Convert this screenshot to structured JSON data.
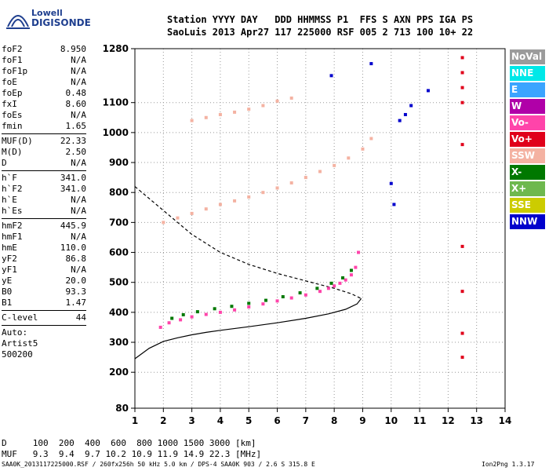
{
  "logo": {
    "line1": "Lowell",
    "line2": "DIGISONDE"
  },
  "header": {
    "line1": "Station YYYY DAY   DDD HHMMSS P1  FFS S AXN PPS IGA PS",
    "line2": "SaoLuis 2013 Apr27 117 225000 RSF 005 2 713 100 10+ 22"
  },
  "params": [
    {
      "name": "foF2",
      "value": "8.950"
    },
    {
      "name": "foF1",
      "value": "N/A"
    },
    {
      "name": "foF1p",
      "value": "N/A"
    },
    {
      "name": "foE",
      "value": "N/A"
    },
    {
      "name": "foEp",
      "value": "0.48"
    },
    {
      "name": "fxI",
      "value": "8.60"
    },
    {
      "name": "foEs",
      "value": "N/A"
    },
    {
      "name": "fmin",
      "value": "1.65"
    },
    {
      "sep": true
    },
    {
      "name": "MUF(D)",
      "value": "22.33"
    },
    {
      "name": "M(D)",
      "value": "2.50"
    },
    {
      "name": "D",
      "value": "N/A"
    },
    {
      "sep": true
    },
    {
      "name": "h`F",
      "value": "341.0"
    },
    {
      "name": "h`F2",
      "value": "341.0"
    },
    {
      "name": "h`E",
      "value": "N/A"
    },
    {
      "name": "h`Es",
      "value": "N/A"
    },
    {
      "sep": true
    },
    {
      "name": "hmF2",
      "value": "445.9"
    },
    {
      "name": "hmF1",
      "value": "N/A"
    },
    {
      "name": "hmE",
      "value": "110.0"
    },
    {
      "name": "yF2",
      "value": "86.8"
    },
    {
      "name": "yF1",
      "value": "N/A"
    },
    {
      "name": "yE",
      "value": "20.0"
    },
    {
      "name": "B0",
      "value": "93.3"
    },
    {
      "name": "B1",
      "value": "1.47"
    },
    {
      "sep": true
    },
    {
      "name": "C-level",
      "value": "44"
    },
    {
      "sep": true
    },
    {
      "name": "Auto:",
      "value": ""
    },
    {
      "name": "Artist5",
      "value": ""
    },
    {
      "name": "500200",
      "value": ""
    }
  ],
  "legend": [
    {
      "label": "NoVal",
      "color": "#9b9b9b"
    },
    {
      "label": "NNE",
      "color": "#00e8e8"
    },
    {
      "label": "E",
      "color": "#3ba4ff"
    },
    {
      "label": "W",
      "color": "#b000a8"
    },
    {
      "label": "Vo-",
      "color": "#ff44aa"
    },
    {
      "label": "Vo+",
      "color": "#e0001a"
    },
    {
      "label": "SSW",
      "color": "#f4b2a2"
    },
    {
      "label": "X-",
      "color": "#007800"
    },
    {
      "label": "X+",
      "color": "#6eb84e"
    },
    {
      "label": "SSE",
      "color": "#cccc00"
    },
    {
      "label": "NNW",
      "color": "#0000cc"
    }
  ],
  "muf_table": {
    "line1": "D     100  200  400  600  800 1000 1500 3000 [km]",
    "line2": "MUF   9.3  9.4  9.7 10.2 10.9 11.9 14.9 22.3 [MHz]"
  },
  "footer": {
    "left": "SAA0K_2013117225000.RSF / 260fx256h 50 kHz 5.0 km / DPS-4 SAA0K 903 / 2.6 S 315.8 E",
    "right": "Ion2Png 1.3.17"
  },
  "chart_data": {
    "type": "scatter",
    "xlim": [
      1,
      14
    ],
    "ylim": [
      80,
      1280
    ],
    "x_ticks": [
      1,
      2,
      3,
      4,
      5,
      6,
      7,
      8,
      9,
      10,
      11,
      12,
      13,
      14
    ],
    "y_ticks": [
      80,
      200,
      300,
      400,
      500,
      600,
      700,
      800,
      900,
      1000,
      1100,
      1280
    ],
    "grid": "dotted",
    "legend_placement": "right",
    "series": [
      {
        "color_key": "Vo-",
        "trace": "F2 trace",
        "x": [
          1.9,
          2.2,
          2.6,
          3.0,
          3.5,
          4.0,
          4.5,
          5.0,
          5.5,
          6.0,
          6.5,
          7.0,
          7.5,
          7.8,
          8.0,
          8.2,
          8.4,
          8.6,
          8.75,
          8.85
        ],
        "y": [
          350,
          365,
          375,
          385,
          393,
          400,
          408,
          418,
          428,
          438,
          448,
          458,
          470,
          480,
          488,
          497,
          508,
          525,
          550,
          600
        ]
      },
      {
        "color_key": "X-",
        "trace": "F2 x-trace",
        "x": [
          2.3,
          2.7,
          3.2,
          3.8,
          4.4,
          5.0,
          5.6,
          6.2,
          6.8,
          7.4,
          7.9,
          8.3,
          8.6
        ],
        "y": [
          380,
          392,
          402,
          412,
          420,
          430,
          440,
          452,
          465,
          480,
          497,
          515,
          540
        ]
      },
      {
        "color_key": "SSW",
        "trace": "second hop F2",
        "x": [
          2.0,
          2.5,
          3.0,
          3.5,
          4.0,
          4.5,
          5.0,
          5.5,
          6.0,
          6.5,
          7.0,
          7.5,
          8.0,
          8.5,
          9.0,
          9.3
        ],
        "y": [
          700,
          715,
          730,
          745,
          760,
          772,
          785,
          800,
          815,
          832,
          850,
          870,
          890,
          915,
          945,
          980
        ]
      },
      {
        "color_key": "SSW",
        "trace": "third hop F2",
        "x": [
          3.0,
          3.5,
          4.0,
          4.5,
          5.0,
          5.5,
          6.0,
          6.5
        ],
        "y": [
          1040,
          1050,
          1060,
          1068,
          1078,
          1090,
          1105,
          1115
        ]
      },
      {
        "color_key": "Vo+",
        "trace": "spread column 12.5 MHz",
        "x": [
          12.5,
          12.5,
          12.5,
          12.5,
          12.5,
          12.5,
          12.5,
          12.5,
          12.5
        ],
        "y": [
          1250,
          1200,
          1150,
          1100,
          960,
          620,
          470,
          330,
          250
        ]
      },
      {
        "color_key": "NNW",
        "trace": "oblique echoes",
        "x": [
          9.3,
          10.0,
          10.1,
          10.3,
          10.5,
          10.7,
          11.3,
          7.9
        ],
        "y": [
          1230,
          830,
          760,
          1040,
          1060,
          1090,
          1140,
          1190
        ]
      }
    ],
    "profile_true_height": {
      "x": [
        1.0,
        1.5,
        2.0,
        2.5,
        3.0,
        3.5,
        4.0,
        5.0,
        6.0,
        7.0,
        7.8,
        8.4,
        8.8,
        8.95
      ],
      "y": [
        245,
        280,
        303,
        315,
        325,
        333,
        340,
        352,
        365,
        380,
        395,
        410,
        428,
        446
      ]
    },
    "profile_dashed": {
      "x": [
        1.0,
        2.0,
        3.0,
        4.0,
        5.0,
        6.0,
        7.0,
        8.0,
        8.6,
        8.95
      ],
      "y": [
        820,
        740,
        660,
        600,
        560,
        530,
        505,
        480,
        462,
        446
      ]
    }
  }
}
